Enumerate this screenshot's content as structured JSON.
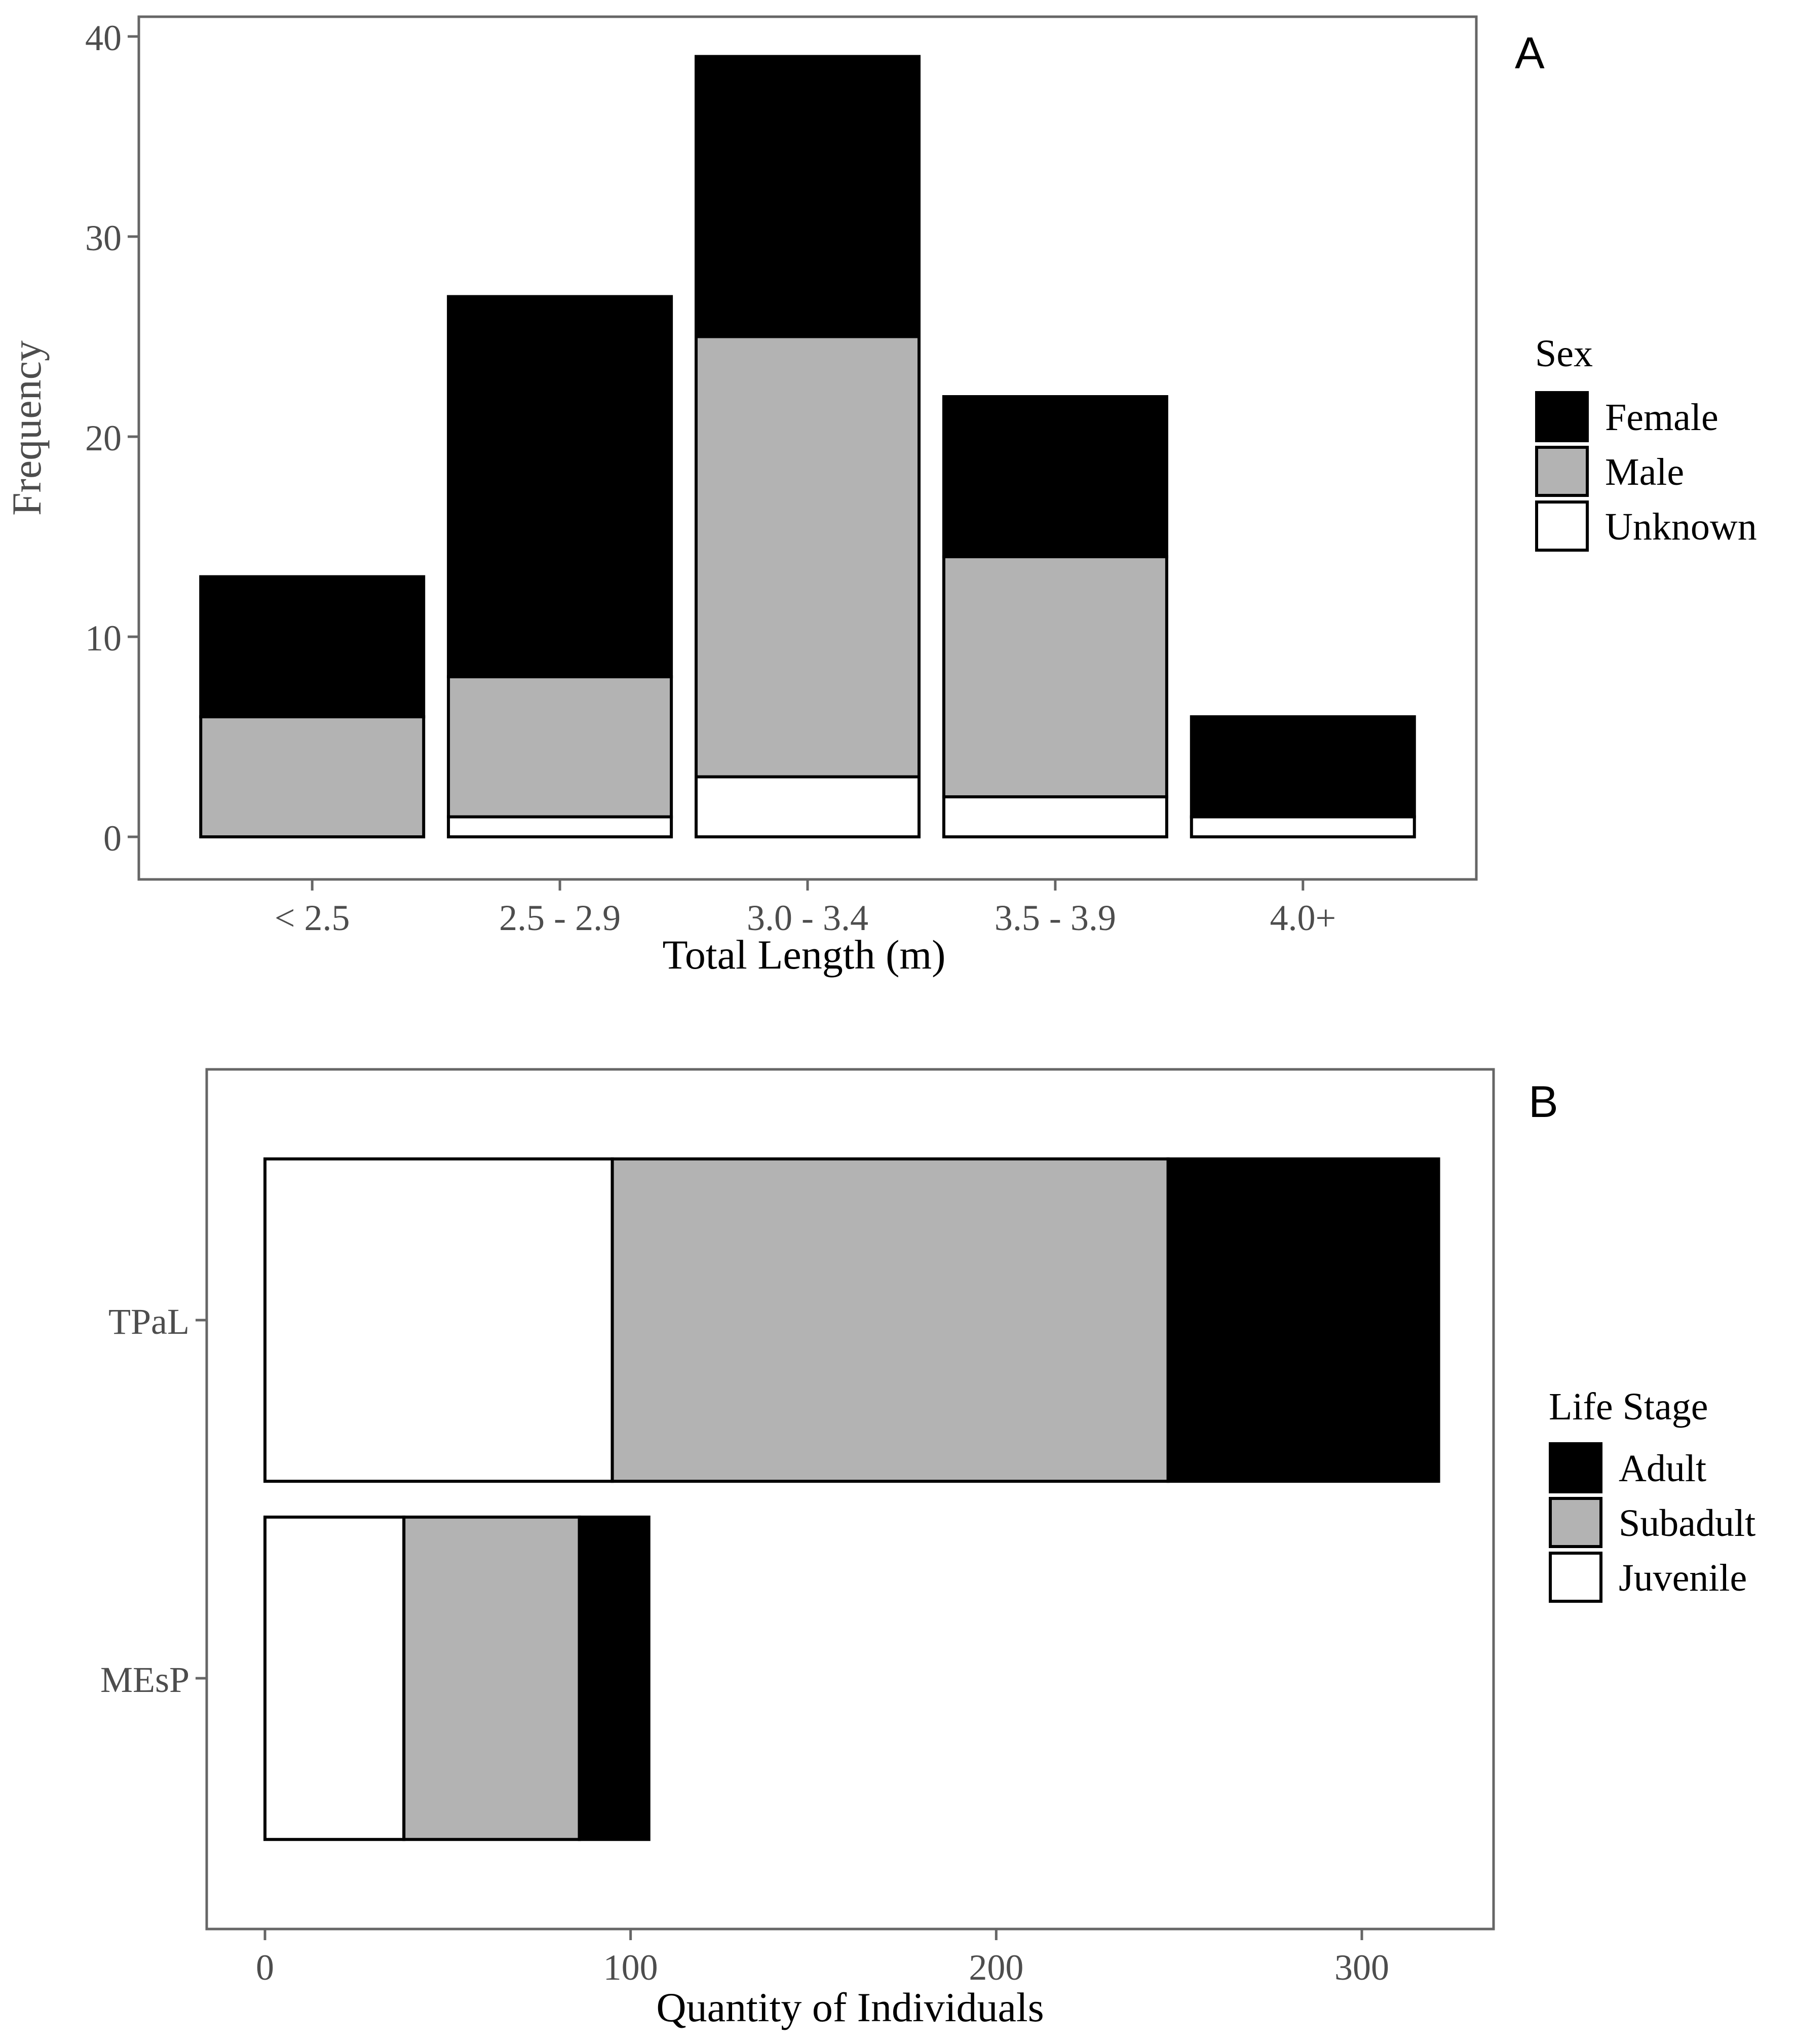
{
  "colors": {
    "black": "#000000",
    "grey": "#b3b3b3",
    "white": "#ffffff",
    "frame": "#666666"
  },
  "chart_data": [
    {
      "panel": "A",
      "type": "bar",
      "stacked": true,
      "orientation": "vertical",
      "xlabel": "Total Length (m)",
      "ylabel": "Frequency",
      "ylim": [
        0,
        41
      ],
      "yticks": [
        0,
        10,
        20,
        30,
        40
      ],
      "categories": [
        "< 2.5",
        "2.5 - 2.9",
        "3.0 - 3.4",
        "3.5 - 3.9",
        "4.0+"
      ],
      "legend_title": "Sex",
      "legend_position": "right",
      "grid": false,
      "series": [
        {
          "name": "Unknown",
          "color": "#ffffff",
          "values": [
            0,
            1,
            3,
            2,
            1
          ]
        },
        {
          "name": "Male",
          "color": "#b3b3b3",
          "values": [
            6,
            7,
            22,
            12,
            0
          ]
        },
        {
          "name": "Female",
          "color": "#000000",
          "values": [
            7,
            19,
            14,
            8,
            5
          ]
        }
      ],
      "legend_order": [
        "Female",
        "Male",
        "Unknown"
      ]
    },
    {
      "panel": "B",
      "type": "bar",
      "stacked": true,
      "orientation": "horizontal",
      "xlabel": "Quantity of Individuals",
      "ylabel": "",
      "xlim": [
        -16,
        336
      ],
      "xticks": [
        0,
        100,
        200,
        300
      ],
      "categories": [
        "TPaL",
        "MEsP"
      ],
      "legend_title": "Life Stage",
      "legend_position": "right",
      "grid": false,
      "series": [
        {
          "name": "Juvenile",
          "color": "#ffffff",
          "values": [
            95,
            38
          ]
        },
        {
          "name": "Subadult",
          "color": "#b3b3b3",
          "values": [
            152,
            48
          ]
        },
        {
          "name": "Adult",
          "color": "#000000",
          "values": [
            74,
            19
          ]
        }
      ],
      "legend_order": [
        "Adult",
        "Subadult",
        "Juvenile"
      ]
    }
  ]
}
